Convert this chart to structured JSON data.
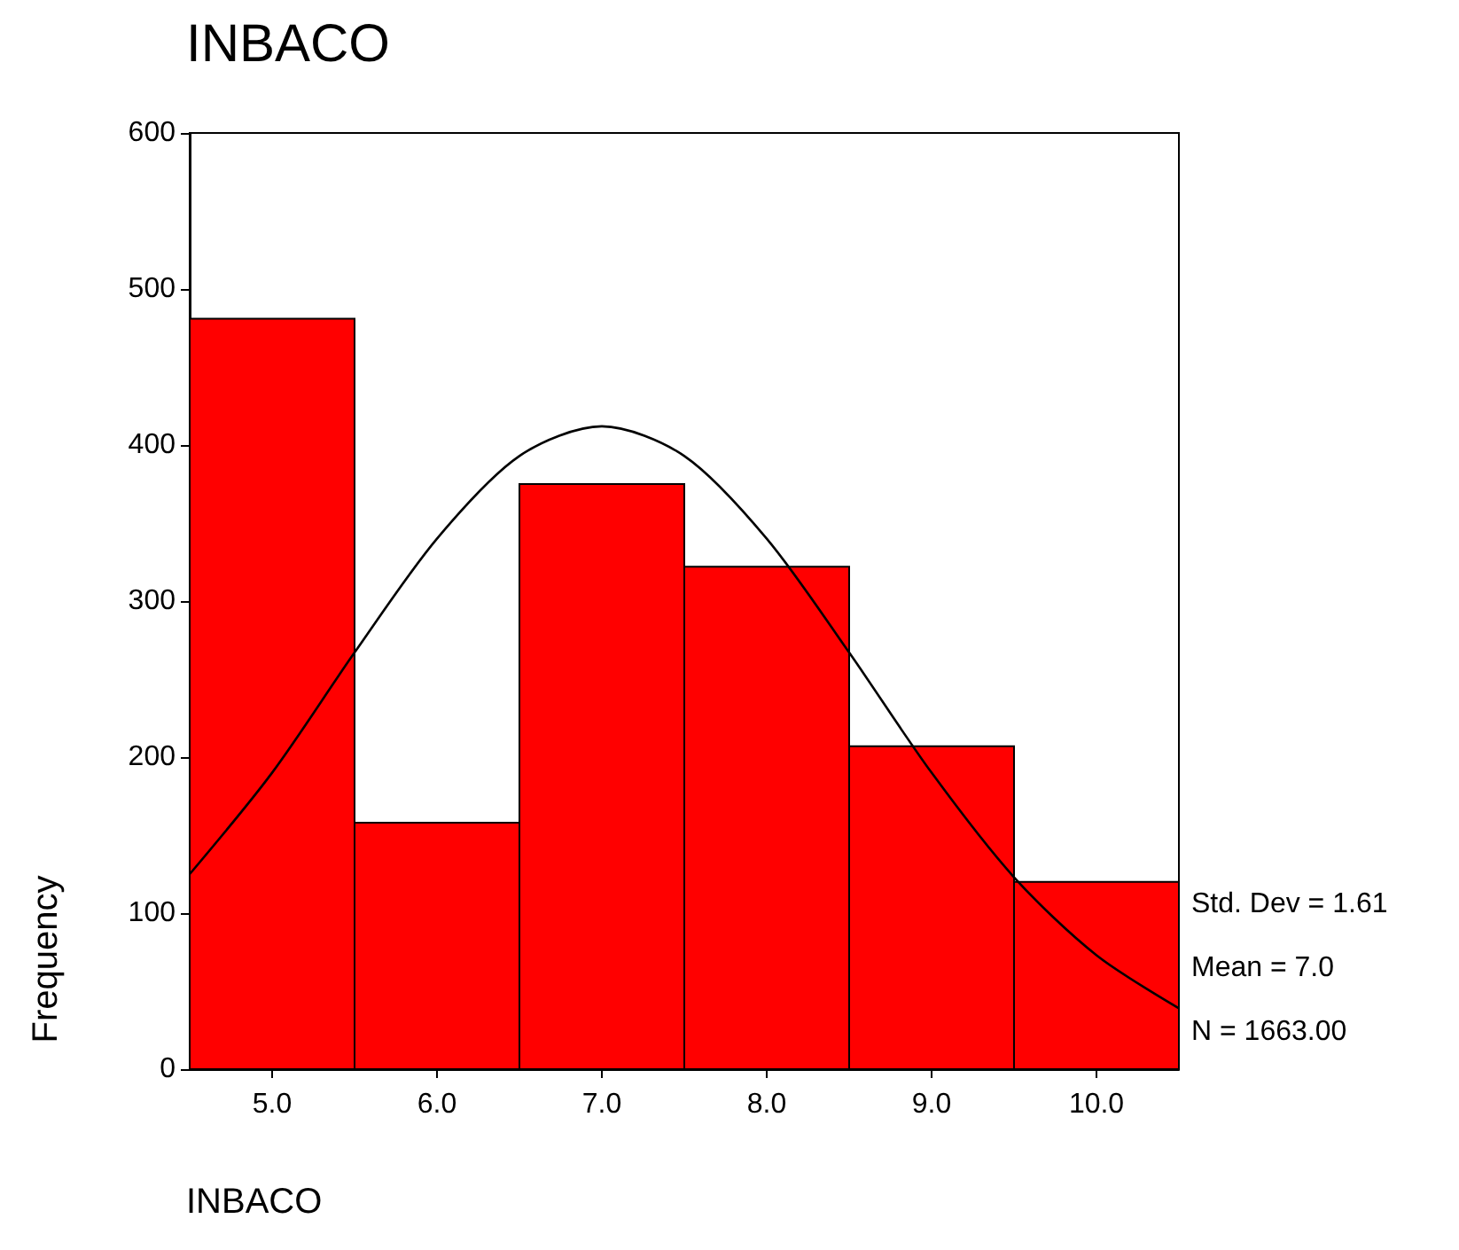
{
  "chart_data": {
    "type": "histogram",
    "title": "INBACO",
    "xlabel": "INBACO",
    "ylabel": "Frequency",
    "bins": [
      4.5,
      5.5,
      6.5,
      7.5,
      8.5,
      9.5,
      10.5
    ],
    "values": [
      481,
      158,
      375,
      322,
      207,
      120
    ],
    "color": "#ff0000",
    "series": [
      {
        "type": "line",
        "color": "#000000",
        "x": [
          4.5,
          5,
          5.5,
          6,
          6.5,
          7,
          7.5,
          8,
          8.5,
          9,
          9.5,
          10,
          10.5
        ],
        "values": [
          125,
          190,
          267,
          340,
          393,
          412,
          393,
          340,
          267,
          190,
          123,
          73,
          39
        ]
      }
    ],
    "xlim": [
      4.5,
      10.5
    ],
    "xticks": [
      {
        "value": 5,
        "label": "5.0"
      },
      {
        "value": 6,
        "label": "6.0"
      },
      {
        "value": 7,
        "label": "7.0"
      },
      {
        "value": 8,
        "label": "8.0"
      },
      {
        "value": 9,
        "label": "9.0"
      },
      {
        "value": 10,
        "label": "10.0"
      }
    ],
    "ylim": [
      0,
      600
    ],
    "yticks": [
      0,
      100,
      200,
      300,
      400,
      500,
      600
    ],
    "grid": false,
    "marker": "none",
    "line_style": "solid",
    "annotations": [
      "Std. Dev = 1.61",
      "Mean = 7.0",
      "N = 1663.00"
    ]
  }
}
